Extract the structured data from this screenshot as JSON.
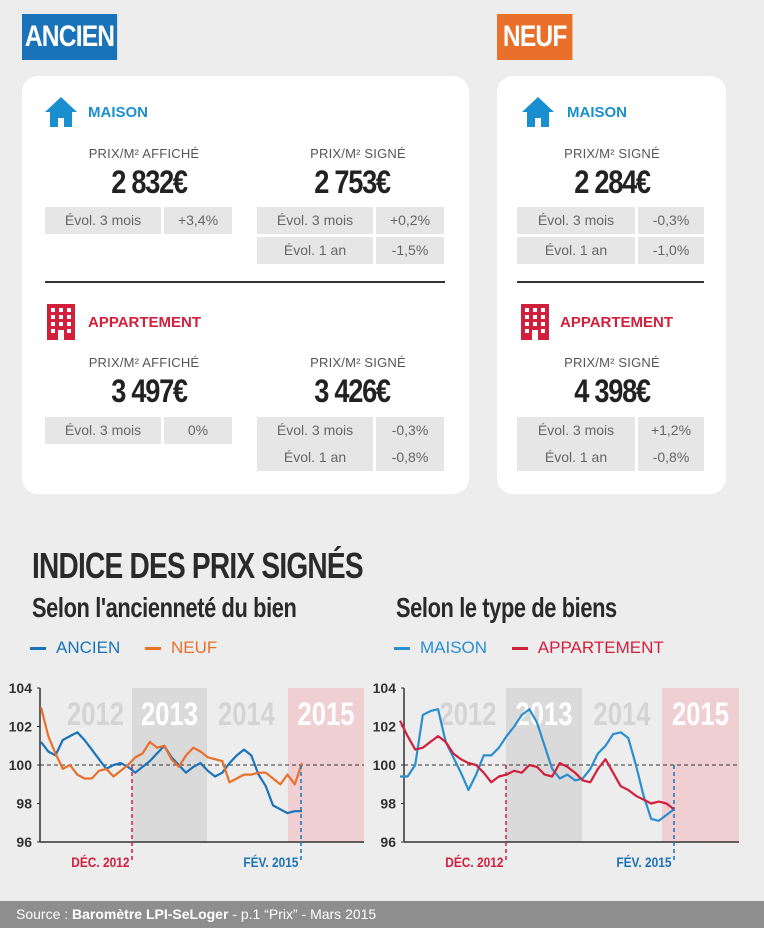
{
  "tags": {
    "ancien": "ANCIEN",
    "neuf": "NEUF"
  },
  "ancien": {
    "maison": {
      "title": "MAISON",
      "affiche_label": "PRIX/M² AFFICHÉ",
      "affiche_price": "2 832€",
      "affiche_evol": [
        {
          "label": "Évol. 3 mois",
          "value": "+3,4%"
        }
      ],
      "signe_label": "PRIX/M² SIGNÉ",
      "signe_price": "2 753€",
      "signe_evol": [
        {
          "label": "Évol. 3 mois",
          "value": "+0,2%"
        },
        {
          "label": "Évol. 1 an",
          "value": "-1,5%"
        }
      ]
    },
    "appartement": {
      "title": "APPARTEMENT",
      "affiche_label": "PRIX/M² AFFICHÉ",
      "affiche_price": "3 497€",
      "affiche_evol": [
        {
          "label": "Évol. 3 mois",
          "value": "0%"
        }
      ],
      "signe_label": "PRIX/M² SIGNÉ",
      "signe_price": "3 426€",
      "signe_evol": [
        {
          "label": "Évol. 3 mois",
          "value": "-0,3%"
        },
        {
          "label": "Évol. 1 an",
          "value": "-0,8%"
        }
      ]
    }
  },
  "neuf": {
    "maison": {
      "title": "MAISON",
      "signe_label": "PRIX/M² SIGNÉ",
      "signe_price": "2 284€",
      "signe_evol": [
        {
          "label": "Évol. 3 mois",
          "value": "-0,3%"
        },
        {
          "label": "Évol. 1 an",
          "value": "-1,0%"
        }
      ]
    },
    "appartement": {
      "title": "APPARTEMENT",
      "signe_label": "PRIX/M² SIGNÉ",
      "signe_price": "4 398€",
      "signe_evol": [
        {
          "label": "Évol. 3 mois",
          "value": "+1,2%"
        },
        {
          "label": "Évol. 1 an",
          "value": "-0,8%"
        }
      ]
    }
  },
  "index_title": "INDICE DES PRIX SIGNÉS",
  "colors": {
    "blue": "#1a73b9",
    "orange": "#e8702a",
    "light_blue": "#2a8fd0",
    "red": "#d21f3c"
  },
  "chart_data": [
    {
      "type": "line",
      "title": "Selon l'ancienneté du bien",
      "ylim": [
        96,
        104
      ],
      "yticks": [
        "104",
        "102",
        "100",
        "98",
        "96"
      ],
      "periods": [
        "2012",
        "2013",
        "2014",
        "2015"
      ],
      "markers": [
        "DÉC. 2012",
        "FÉV. 2015"
      ],
      "reference": 100,
      "series": [
        {
          "name": "ANCIEN",
          "color": "#1a73b9",
          "values": [
            101.2,
            100.7,
            100.5,
            101.3,
            101.5,
            101.7,
            101.3,
            100.8,
            100.3,
            99.8,
            100.0,
            100.1,
            99.9,
            99.6,
            99.9,
            100.2,
            100.6,
            101.0,
            100.4,
            100.0,
            99.6,
            99.9,
            100.1,
            99.7,
            99.4,
            99.6,
            100.1,
            100.5,
            100.8,
            100.5,
            99.5,
            98.9,
            97.9,
            97.7,
            97.5,
            97.6,
            97.6
          ]
        },
        {
          "name": "NEUF",
          "color": "#e8702a",
          "values": [
            103.0,
            101.5,
            100.6,
            99.8,
            100.0,
            99.5,
            99.3,
            99.3,
            99.7,
            99.8,
            99.4,
            99.7,
            100.0,
            100.4,
            100.6,
            101.2,
            100.9,
            101.0,
            100.3,
            99.9,
            100.5,
            100.9,
            100.7,
            100.4,
            100.3,
            100.2,
            99.1,
            99.3,
            99.5,
            99.5,
            99.6,
            99.6,
            99.3,
            99.0,
            99.5,
            99.0,
            100.1
          ]
        }
      ]
    },
    {
      "type": "line",
      "title": "Selon le type de biens",
      "ylim": [
        96,
        104
      ],
      "yticks": [
        "104",
        "102",
        "100",
        "98",
        "96"
      ],
      "periods": [
        "2012",
        "2013",
        "2014",
        "2015"
      ],
      "markers": [
        "DÉC. 2012",
        "FÉV. 2015"
      ],
      "reference": 100,
      "series": [
        {
          "name": "MAISON",
          "color": "#2a8fd0",
          "values": [
            99.4,
            99.4,
            100.0,
            102.6,
            102.8,
            102.9,
            101.2,
            100.4,
            99.6,
            98.7,
            99.5,
            100.5,
            100.5,
            100.9,
            101.5,
            102.0,
            102.6,
            102.9,
            102.2,
            101.0,
            99.8,
            99.3,
            99.5,
            99.2,
            99.3,
            99.8,
            100.6,
            101.0,
            101.6,
            101.7,
            101.4,
            100.0,
            98.4,
            97.2,
            97.1,
            97.4,
            97.7
          ]
        },
        {
          "name": "APPARTEMENT",
          "color": "#d21f3c",
          "values": [
            102.3,
            101.5,
            100.8,
            100.9,
            101.2,
            101.5,
            101.2,
            100.6,
            100.3,
            100.1,
            100.0,
            99.6,
            99.1,
            99.4,
            99.5,
            99.7,
            99.6,
            100.0,
            99.9,
            99.5,
            99.4,
            100.1,
            99.9,
            99.6,
            99.2,
            99.1,
            99.8,
            100.3,
            99.6,
            98.9,
            98.7,
            98.4,
            98.2,
            98.0,
            98.1,
            98.0,
            97.7
          ]
        }
      ]
    }
  ],
  "footer": {
    "prefix": "Source : ",
    "source": "Baromètre LPI-SeLoger",
    "suffix": " - p.1 “Prix” - Mars 2015"
  }
}
